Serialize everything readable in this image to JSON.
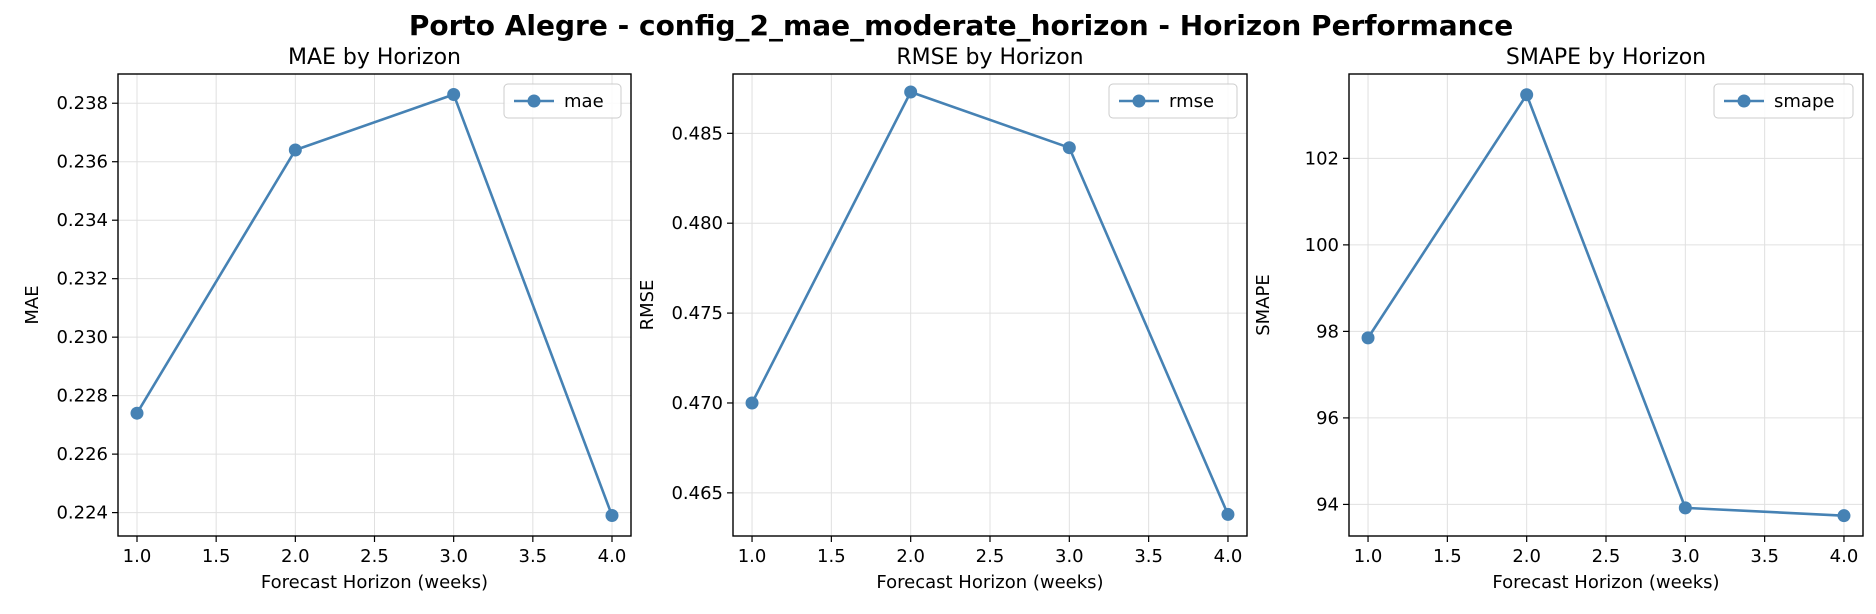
{
  "figure": {
    "title": "Porto Alegre - config_2_mae_moderate_horizon - Horizon Performance"
  },
  "colors": {
    "line": "#4682b4",
    "grid": "#e0e0e0",
    "axis": "#000000"
  },
  "chart_data": [
    {
      "type": "line",
      "title": "MAE by Horizon",
      "xlabel": "Forecast Horizon (weeks)",
      "ylabel": "MAE",
      "x": [
        1.0,
        2.0,
        3.0,
        4.0
      ],
      "series": [
        {
          "name": "mae",
          "values": [
            0.2274,
            0.2364,
            0.2383,
            0.2239
          ]
        }
      ],
      "xlim": [
        0.88,
        4.12
      ],
      "ylim": [
        0.2232,
        0.239
      ],
      "xticks": [
        1.0,
        1.5,
        2.0,
        2.5,
        3.0,
        3.5,
        4.0
      ],
      "xtick_labels": [
        "1.0",
        "1.5",
        "2.0",
        "2.5",
        "3.0",
        "3.5",
        "4.0"
      ],
      "yticks": [
        0.224,
        0.226,
        0.228,
        0.23,
        0.232,
        0.234,
        0.236,
        0.238
      ],
      "ytick_labels": [
        "0.224",
        "0.226",
        "0.228",
        "0.230",
        "0.232",
        "0.234",
        "0.236",
        "0.238"
      ],
      "grid": true,
      "legend": "upper right"
    },
    {
      "type": "line",
      "title": "RMSE by Horizon",
      "xlabel": "Forecast Horizon (weeks)",
      "ylabel": "RMSE",
      "x": [
        1.0,
        2.0,
        3.0,
        4.0
      ],
      "series": [
        {
          "name": "rmse",
          "values": [
            0.47,
            0.4873,
            0.4842,
            0.4638
          ]
        }
      ],
      "xlim": [
        0.88,
        4.12
      ],
      "ylim": [
        0.4626,
        0.4883
      ],
      "xticks": [
        1.0,
        1.5,
        2.0,
        2.5,
        3.0,
        3.5,
        4.0
      ],
      "xtick_labels": [
        "1.0",
        "1.5",
        "2.0",
        "2.5",
        "3.0",
        "3.5",
        "4.0"
      ],
      "yticks": [
        0.465,
        0.47,
        0.475,
        0.48,
        0.485
      ],
      "ytick_labels": [
        "0.465",
        "0.470",
        "0.475",
        "0.480",
        "0.485"
      ],
      "grid": true,
      "legend": "upper right"
    },
    {
      "type": "line",
      "title": "SMAPE by Horizon",
      "xlabel": "Forecast Horizon (weeks)",
      "ylabel": "SMAPE",
      "x": [
        1.0,
        2.0,
        3.0,
        4.0
      ],
      "series": [
        {
          "name": "smape",
          "values": [
            97.85,
            103.47,
            93.92,
            93.74
          ]
        }
      ],
      "xlim": [
        0.88,
        4.12
      ],
      "ylim": [
        93.27,
        103.95
      ],
      "xticks": [
        1.0,
        1.5,
        2.0,
        2.5,
        3.0,
        3.5,
        4.0
      ],
      "xtick_labels": [
        "1.0",
        "1.5",
        "2.0",
        "2.5",
        "3.0",
        "3.5",
        "4.0"
      ],
      "yticks": [
        94,
        96,
        98,
        100,
        102
      ],
      "ytick_labels": [
        "94",
        "96",
        "98",
        "100",
        "102"
      ],
      "grid": true,
      "legend": "upper right"
    }
  ]
}
